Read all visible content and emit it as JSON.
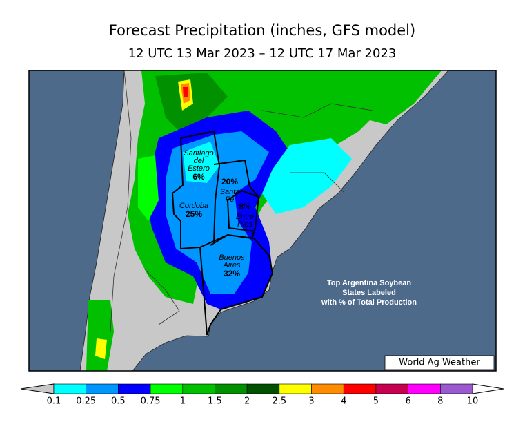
{
  "title": "Forecast Precipitation (inches, GFS model)",
  "subtitle": "12 UTC 13 Mar 2023 – 12 UTC 17 Mar 2023",
  "provinces": [
    {
      "name": [
        "Santiago",
        "del",
        "Estero"
      ],
      "share": "6%"
    },
    {
      "name": [
        "Santa",
        "Fe"
      ],
      "share": "20%"
    },
    {
      "name": [
        "Cordoba"
      ],
      "share": "25%"
    },
    {
      "name": [
        "Entre",
        "Rios"
      ],
      "share": "8%"
    },
    {
      "name": [
        "Buenos",
        "Aires"
      ],
      "share": "32%"
    }
  ],
  "annotation": [
    "Top Argentina Soybean",
    "States Labeled",
    "with % of Total Production"
  ],
  "credit": "World Ag Weather",
  "legend": {
    "labels": [
      "0.1",
      "0.25",
      "0.5",
      "0.75",
      "1",
      "1.5",
      "2",
      "2.5",
      "3",
      "4",
      "5",
      "6",
      "8",
      "10"
    ],
    "colors": [
      "#00ffff",
      "#0096ff",
      "#0000ff",
      "#00ff00",
      "#00c000",
      "#009000",
      "#005000",
      "#ffff00",
      "#ff8c00",
      "#ff0000",
      "#c80050",
      "#ff00ff",
      "#9b59d0"
    ]
  }
}
